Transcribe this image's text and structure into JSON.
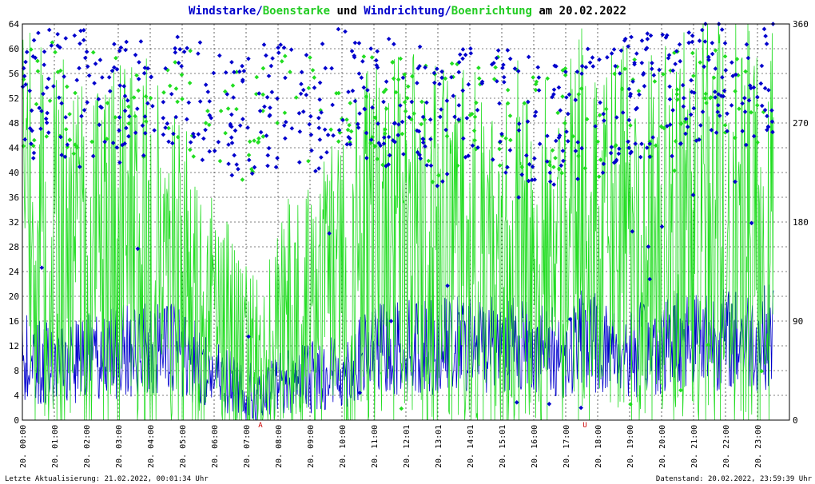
{
  "title": {
    "parts": [
      {
        "text": "Windstarke",
        "color": "#0000cc"
      },
      {
        "text": "/",
        "color": "#0000cc"
      },
      {
        "text": "Boenstarke",
        "color": "#22cc22"
      },
      {
        "text": " und ",
        "color": "#000000"
      },
      {
        "text": "Windrichtung",
        "color": "#0000cc"
      },
      {
        "text": "/",
        "color": "#0000cc"
      },
      {
        "text": "Boenrichtung",
        "color": "#22cc22"
      },
      {
        "text": " am 20.02.2022",
        "color": "#000000"
      }
    ]
  },
  "footer": {
    "left": "Letzte Aktualisierung: 21.02.2022, 00:01:34 Uhr",
    "right": "Datenstand: 20.02.2022, 23:59:39 Uhr"
  },
  "markers": [
    {
      "label": "A",
      "hour": 7.45
    },
    {
      "label": "U",
      "hour": 17.6
    }
  ],
  "colors": {
    "wind": "#0000cc",
    "gust": "#22dd22",
    "grid": "#000000",
    "marker": "#cc0000"
  },
  "chart_data": {
    "type": "line",
    "title": "Windstarke/Boenstarke und Windrichtung/Boenrichtung am 20.02.2022",
    "x_axis": {
      "range_hours": [
        0,
        23.5
      ],
      "tick_labels": [
        "20. 00:00",
        "20. 01:00",
        "20. 02:00",
        "20. 03:00",
        "20. 04:00",
        "20. 05:00",
        "20. 06:00",
        "20. 07:00",
        "20. 08:00",
        "20. 09:00",
        "20. 10:00",
        "20. 11:00",
        "20. 12:01",
        "20. 13:01",
        "20. 14:01",
        "20. 15:01",
        "20. 16:00",
        "20. 17:00",
        "20. 18:00",
        "20. 19:00",
        "20. 20:00",
        "20. 21:00",
        "20. 22:00",
        "20. 23:00"
      ]
    },
    "y_left": {
      "range": [
        0,
        64
      ],
      "ticks": [
        0,
        4,
        8,
        12,
        16,
        20,
        24,
        28,
        32,
        36,
        40,
        44,
        48,
        52,
        56,
        60,
        64
      ]
    },
    "y_right": {
      "range": [
        0,
        360
      ],
      "ticks": [
        0,
        90,
        180,
        270,
        360
      ]
    },
    "grid": true,
    "series": [
      {
        "name": "Windstarke",
        "axis": "left",
        "kind": "line",
        "color": "#0000cc",
        "hours": [
          0,
          1,
          2,
          3,
          4,
          5,
          6,
          7,
          7.5,
          8,
          9,
          10,
          11,
          12,
          13,
          14,
          15,
          16,
          17,
          17.6,
          18,
          19,
          20,
          21,
          22,
          23,
          23.5
        ],
        "values": [
          10,
          9,
          10,
          11,
          12,
          11,
          7,
          5,
          3,
          6,
          7,
          8,
          11,
          12,
          12,
          12,
          13,
          12,
          10,
          14,
          12,
          11,
          12,
          14,
          13,
          13,
          14
        ]
      },
      {
        "name": "Boenstarke",
        "axis": "left",
        "kind": "line",
        "color": "#22dd22",
        "hours": [
          0,
          1,
          2,
          3,
          4,
          5,
          6,
          7,
          7.5,
          8,
          9,
          10,
          11,
          12,
          13,
          14,
          15,
          16,
          17,
          17.6,
          18,
          19,
          20,
          21,
          22,
          23,
          23.5
        ],
        "values": [
          30,
          28,
          25,
          27,
          28,
          22,
          15,
          12,
          7,
          14,
          20,
          22,
          27,
          28,
          27,
          26,
          28,
          26,
          26,
          32,
          28,
          29,
          28,
          32,
          31,
          31,
          30
        ]
      },
      {
        "name": "Windrichtung",
        "axis": "right",
        "kind": "scatter",
        "color": "#0000cc",
        "hours": [
          0,
          1,
          2,
          3,
          4,
          5,
          6,
          7,
          8,
          9,
          10,
          11,
          12,
          13,
          14,
          15,
          16,
          17,
          18,
          19,
          20,
          21,
          22,
          23,
          23.5
        ],
        "values": [
          290,
          300,
          295,
          285,
          290,
          300,
          280,
          270,
          290,
          280,
          300,
          285,
          290,
          270,
          300,
          280,
          270,
          275,
          280,
          300,
          290,
          310,
          320,
          300,
          320
        ]
      },
      {
        "name": "Boenrichtung",
        "axis": "right",
        "kind": "scatter",
        "color": "#22dd22",
        "hours": [
          0,
          1,
          2,
          3,
          4,
          5,
          6,
          7,
          8,
          9,
          10,
          11,
          12,
          13,
          14,
          15,
          16,
          17,
          18,
          19,
          20,
          21,
          22,
          23,
          23.5
        ],
        "values": [
          285,
          295,
          290,
          285,
          290,
          295,
          275,
          265,
          290,
          280,
          295,
          280,
          285,
          265,
          290,
          280,
          265,
          270,
          280,
          290,
          285,
          300,
          310,
          290,
          310
        ]
      }
    ]
  }
}
